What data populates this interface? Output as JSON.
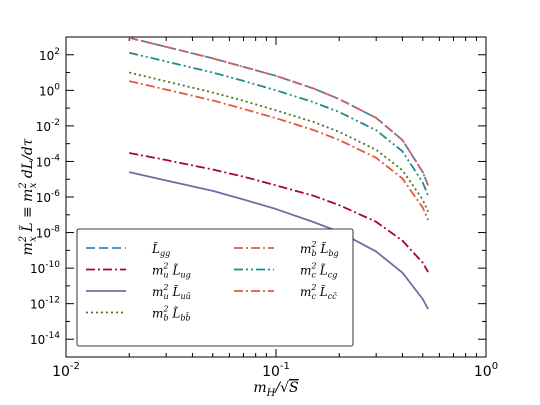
{
  "chart_data": {
    "type": "line",
    "xscale": "log",
    "yscale": "log",
    "xlim": [
      0.01,
      1
    ],
    "ylim": [
      1e-15,
      1000
    ],
    "xlabel": "m_H/√S",
    "ylabel": "m_x² L̃ ≡ m_x² dL/dτ",
    "xticks": [
      {
        "value": 0.01,
        "label": "10",
        "exp": "-2"
      },
      {
        "value": 0.1,
        "label": "10",
        "exp": "-1"
      },
      {
        "value": 1,
        "label": "10",
        "exp": "0"
      }
    ],
    "yticks": [
      {
        "value": 1e-14,
        "label": "10",
        "exp": "-14"
      },
      {
        "value": 1e-12,
        "label": "10",
        "exp": "-12"
      },
      {
        "value": 1e-10,
        "label": "10",
        "exp": "-10"
      },
      {
        "value": 1e-08,
        "label": "10",
        "exp": "-8"
      },
      {
        "value": 1e-06,
        "label": "10",
        "exp": "-6"
      },
      {
        "value": 0.0001,
        "label": "10",
        "exp": "-4"
      },
      {
        "value": 0.01,
        "label": "10",
        "exp": "-2"
      },
      {
        "value": 1,
        "label": "10",
        "exp": "0"
      },
      {
        "value": 100,
        "label": "10",
        "exp": "2"
      }
    ],
    "x": [
      0.02,
      0.03,
      0.05,
      0.07,
      0.1,
      0.15,
      0.2,
      0.3,
      0.4,
      0.5,
      0.53
    ],
    "series": [
      {
        "name": "L̃_gg",
        "color": "#348abd",
        "dash": "9,4",
        "width": 1.8,
        "values": [
          900,
          280,
          63,
          21,
          6.5,
          1.3,
          0.32,
          0.028,
          0.0016,
          2.5e-05,
          4.5e-06
        ]
      },
      {
        "name": "m_u² L̃_ug",
        "color": "#a60628",
        "dash": "9,3,2,3",
        "width": 1.8,
        "values": [
          0.0003,
          0.00012,
          3.5e-05,
          1.4e-05,
          4.5e-06,
          1.2e-06,
          3.5e-07,
          4e-08,
          3.5e-09,
          2e-10,
          6e-11
        ]
      },
      {
        "name": "m_u² L̃_uū",
        "color": "#7a68a6",
        "dash": "",
        "width": 1.8,
        "values": [
          2.5e-05,
          8.5e-06,
          2.2e-06,
          7.2e-07,
          2.1e-07,
          4e-08,
          1.1e-08,
          8.5e-10,
          5.5e-11,
          1.8e-12,
          5e-13
        ]
      },
      {
        "name": "m_b² L̃_bb̄",
        "color": "#467821",
        "dash": "2,3",
        "width": 1.8,
        "values": [
          10,
          3.2,
          0.75,
          0.26,
          0.075,
          0.017,
          0.0046,
          0.00045,
          3.2e-05,
          7e-07,
          1.5e-07
        ]
      },
      {
        "name": "m_b² L̃_bg",
        "color": "#d55e5e",
        "dash": "9,3,2,3",
        "width": 1.8,
        "values": [
          900,
          280,
          63,
          21,
          6.5,
          1.3,
          0.32,
          0.028,
          0.0016,
          2.5e-05,
          4.5e-06
        ]
      },
      {
        "name": "m_c² L̃_cg",
        "color": "#1f8a8a",
        "dash": "9,3,2,3,2,3",
        "width": 1.8,
        "values": [
          130,
          42,
          10,
          3.4,
          1.0,
          0.22,
          0.06,
          0.0057,
          0.00037,
          6.5e-06,
          1.2e-06
        ]
      },
      {
        "name": "m_c² L̃_cc̄",
        "color": "#e8553a",
        "dash": "9,3,2,3",
        "width": 1.8,
        "values": [
          3.3,
          1.1,
          0.27,
          0.09,
          0.027,
          0.006,
          0.0016,
          0.00016,
          1.1e-05,
          2.5e-07,
          5e-08
        ]
      }
    ],
    "legend": {
      "placement": "lower-left",
      "columns": 2,
      "col1": [
        {
          "series": 0,
          "prefix": "",
          "sub": "gg"
        },
        {
          "series": 1,
          "prefix": "m",
          "prefix_sub": "u",
          "sub": "ug"
        },
        {
          "series": 2,
          "prefix": "m",
          "prefix_sub": "u",
          "sub": "uū"
        },
        {
          "series": 3,
          "prefix": "m",
          "prefix_sub": "b",
          "sub": "bb̄"
        }
      ],
      "col2": [
        {
          "series": 4,
          "prefix": "m",
          "prefix_sub": "b",
          "sub": "bg"
        },
        {
          "series": 5,
          "prefix": "m",
          "prefix_sub": "c",
          "sub": "cg"
        },
        {
          "series": 6,
          "prefix": "m",
          "prefix_sub": "c",
          "sub": "cc̄"
        }
      ]
    },
    "grid": false
  }
}
